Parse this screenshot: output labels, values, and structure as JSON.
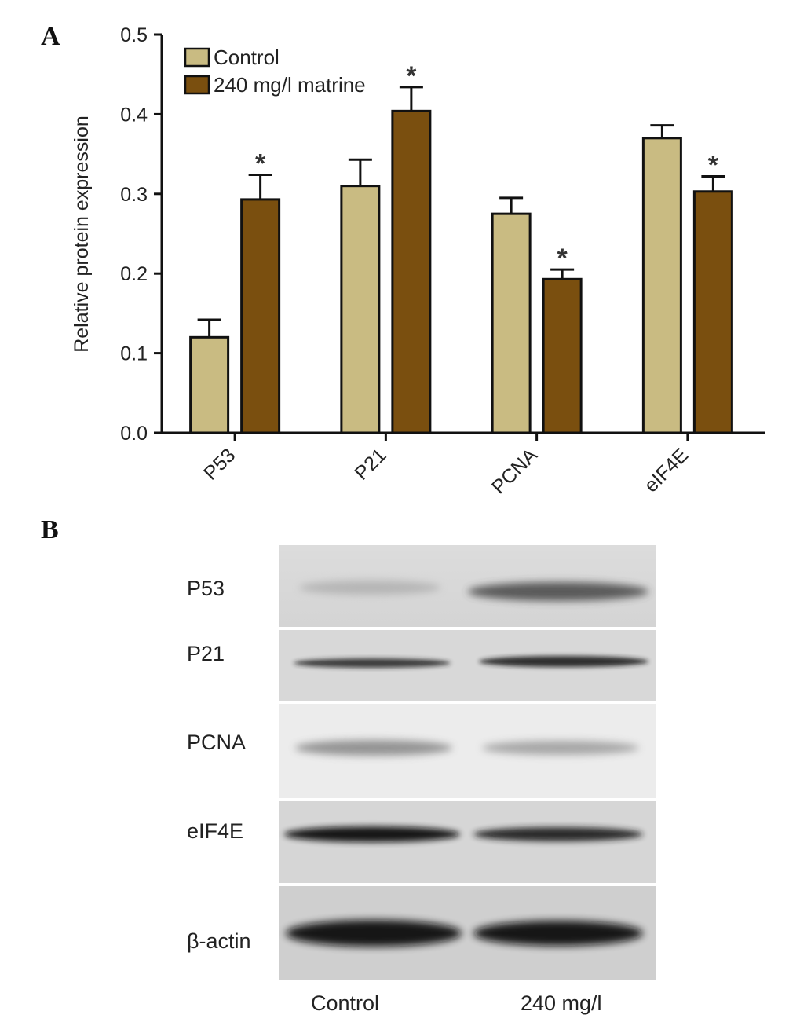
{
  "panel_a": {
    "letter": "A"
  },
  "panel_b": {
    "letter": "B"
  },
  "chart_data": {
    "type": "bar",
    "title": "",
    "xlabel": "",
    "ylabel": "Relative protein expression",
    "ylim": [
      0,
      0.5
    ],
    "yticks": [
      "0.0",
      "0.1",
      "0.2",
      "0.3",
      "0.4",
      "0.5"
    ],
    "categories": [
      "P53",
      "P21",
      "PCNA",
      "eIF4E"
    ],
    "series": [
      {
        "name": "Control",
        "color": "#c9bb82",
        "values": [
          0.12,
          0.31,
          0.275,
          0.37
        ],
        "errors": [
          0.022,
          0.033,
          0.02,
          0.016
        ]
      },
      {
        "name": "240 mg/l matrine",
        "color": "#7a4f0f",
        "values": [
          0.293,
          0.404,
          0.193,
          0.303
        ],
        "errors": [
          0.031,
          0.03,
          0.012,
          0.019
        ]
      }
    ],
    "significance_marker": "*",
    "significant": [
      [
        false,
        false,
        false,
        false
      ],
      [
        true,
        true,
        true,
        true
      ]
    ],
    "legend": {
      "position": "top-left"
    },
    "grid": false
  },
  "blot": {
    "rows": [
      "P53",
      "P21",
      "PCNA",
      "eIF4E",
      "β-actin"
    ],
    "lanes": [
      "Control",
      "240 mg/l"
    ]
  }
}
